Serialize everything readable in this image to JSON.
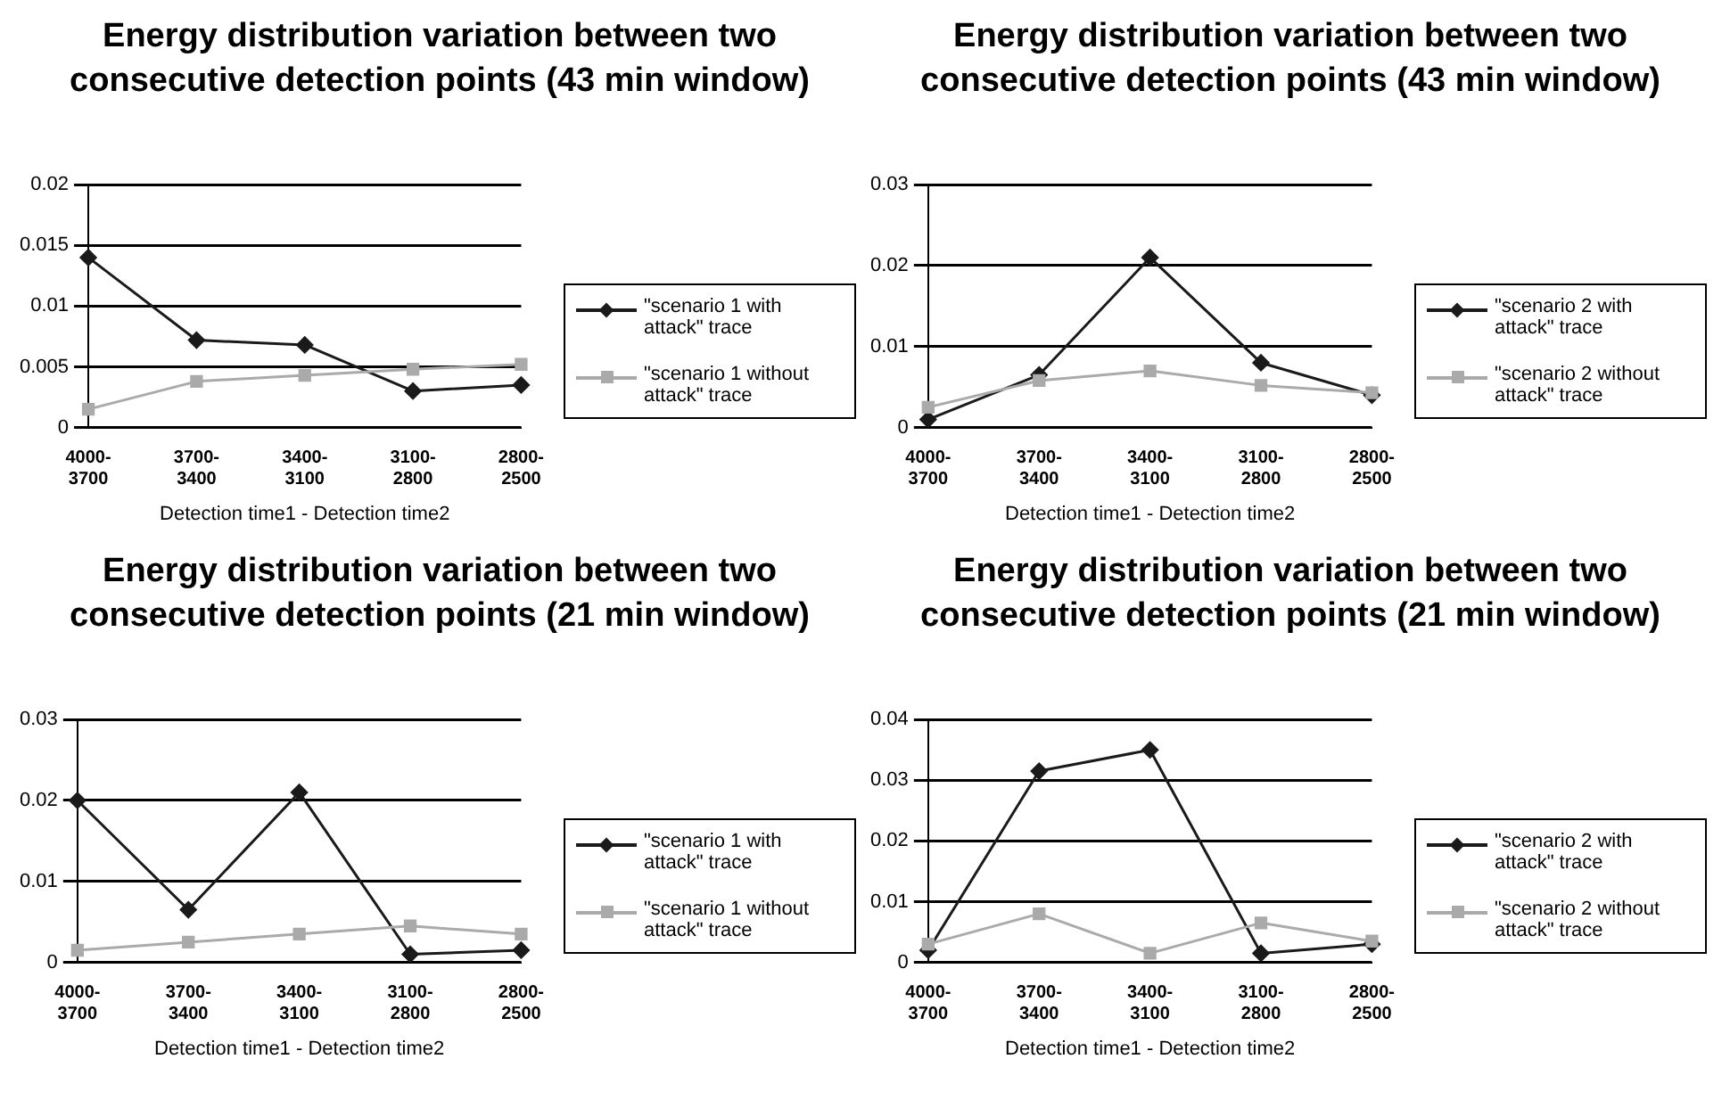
{
  "chart_data": [
    {
      "type": "line",
      "title": "Energy distribution variation between two consecutive detection points (43 min window)",
      "xlabel": "Detection time1 - Detection time2",
      "categories": [
        "4000-3700",
        "3700-3400",
        "3400-3100",
        "3100-2800",
        "2800-2500"
      ],
      "ylim": [
        0,
        0.02
      ],
      "yticks": [
        0,
        0.005,
        0.01,
        0.015,
        0.02
      ],
      "grid": "y",
      "legend": "right",
      "series": [
        {
          "name": "\"scenario 1 with attack\" trace",
          "color": "#1a1a1a",
          "marker": "diamond",
          "values": [
            0.014,
            0.0072,
            0.0068,
            0.003,
            0.0035
          ]
        },
        {
          "name": "\"scenario 1 without attack\" trace",
          "color": "#aaaaaa",
          "marker": "square",
          "values": [
            0.0015,
            0.0038,
            0.0043,
            0.0048,
            0.0052
          ]
        }
      ]
    },
    {
      "type": "line",
      "title": "Energy distribution variation between two consecutive detection points (43 min window)",
      "xlabel": "Detection time1 - Detection time2",
      "categories": [
        "4000-3700",
        "3700-3400",
        "3400-3100",
        "3100-2800",
        "2800-2500"
      ],
      "ylim": [
        0,
        0.03
      ],
      "yticks": [
        0,
        0.01,
        0.02,
        0.03
      ],
      "grid": "y",
      "legend": "right",
      "series": [
        {
          "name": "\"scenario 2 with attack\" trace",
          "color": "#1a1a1a",
          "marker": "diamond",
          "values": [
            0.001,
            0.0065,
            0.021,
            0.008,
            0.004
          ]
        },
        {
          "name": "\"scenario 2 without attack\" trace",
          "color": "#aaaaaa",
          "marker": "square",
          "values": [
            0.0025,
            0.0058,
            0.007,
            0.0052,
            0.0043
          ]
        }
      ]
    },
    {
      "type": "line",
      "title": "Energy distribution variation between two consecutive detection points (21 min window)",
      "xlabel": "Detection time1 - Detection time2",
      "categories": [
        "4000-3700",
        "3700-3400",
        "3400-3100",
        "3100-2800",
        "2800-2500"
      ],
      "ylim": [
        0,
        0.03
      ],
      "yticks": [
        0,
        0.01,
        0.02,
        0.03
      ],
      "grid": "y",
      "legend": "right",
      "series": [
        {
          "name": "\"scenario 1 with attack\" trace",
          "color": "#1a1a1a",
          "marker": "diamond",
          "values": [
            0.02,
            0.0065,
            0.021,
            0.001,
            0.0015
          ]
        },
        {
          "name": "\"scenario 1 without attack\" trace",
          "color": "#aaaaaa",
          "marker": "square",
          "values": [
            0.0015,
            0.0025,
            0.0035,
            0.0045,
            0.0035
          ]
        }
      ]
    },
    {
      "type": "line",
      "title": "Energy distribution variation between two consecutive detection points (21 min window)",
      "xlabel": "Detection time1 - Detection time2",
      "categories": [
        "4000-3700",
        "3700-3400",
        "3400-3100",
        "3100-2800",
        "2800-2500"
      ],
      "ylim": [
        0,
        0.04
      ],
      "yticks": [
        0,
        0.01,
        0.02,
        0.03,
        0.04
      ],
      "grid": "y",
      "legend": "right",
      "series": [
        {
          "name": "\"scenario 2 with attack\" trace",
          "color": "#1a1a1a",
          "marker": "diamond",
          "values": [
            0.002,
            0.0315,
            0.035,
            0.0015,
            0.003
          ]
        },
        {
          "name": "\"scenario 2 without attack\" trace",
          "color": "#aaaaaa",
          "marker": "square",
          "values": [
            0.003,
            0.008,
            0.0015,
            0.0065,
            0.0035
          ]
        }
      ]
    }
  ]
}
